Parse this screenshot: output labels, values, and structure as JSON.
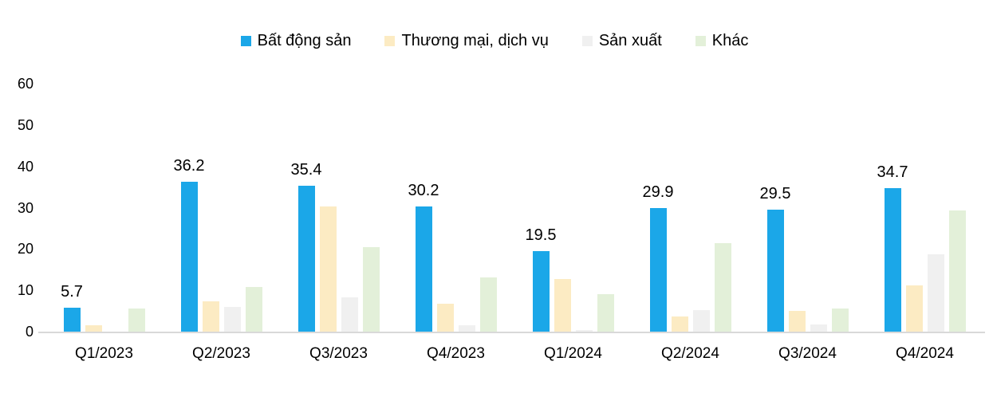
{
  "chart_data": {
    "type": "bar",
    "title": "",
    "categories": [
      "Q1/2023",
      "Q2/2023",
      "Q3/2023",
      "Q4/2023",
      "Q1/2024",
      "Q2/2024",
      "Q3/2024",
      "Q4/2024"
    ],
    "series": [
      {
        "name": "Bất động sản",
        "color": "#1BA7E8",
        "values": [
          5.7,
          36.2,
          35.4,
          30.2,
          19.5,
          29.9,
          29.5,
          34.7
        ]
      },
      {
        "name": "Thương mại, dịch vụ",
        "color": "#FCEBC3",
        "values": [
          1.5,
          7.3,
          30.3,
          6.7,
          12.7,
          3.7,
          5.0,
          11.2
        ]
      },
      {
        "name": "Sản xuất",
        "color": "#F0F0F0",
        "values": [
          0,
          6.0,
          8.3,
          1.5,
          0.3,
          5.2,
          1.8,
          18.7
        ]
      },
      {
        "name": "Khác",
        "color": "#E3F0D9",
        "values": [
          5.5,
          10.8,
          20.5,
          13.1,
          9.1,
          21.5,
          5.5,
          29.4
        ]
      }
    ],
    "data_labels": {
      "series_index": 0,
      "texts": [
        "5.7",
        "36.2",
        "35.4",
        "30.2",
        "19.5",
        "29.9",
        "29.5",
        "34.7"
      ]
    },
    "y_axis": {
      "min": 0,
      "max": 60,
      "step": 10,
      "ticks": [
        "0",
        "10",
        "20",
        "30",
        "40",
        "50",
        "60"
      ]
    },
    "legend_position": "top",
    "grid": false,
    "axis_line_color": "#d9d9d9",
    "text_color": "#000000",
    "background_color": "#ffffff"
  }
}
